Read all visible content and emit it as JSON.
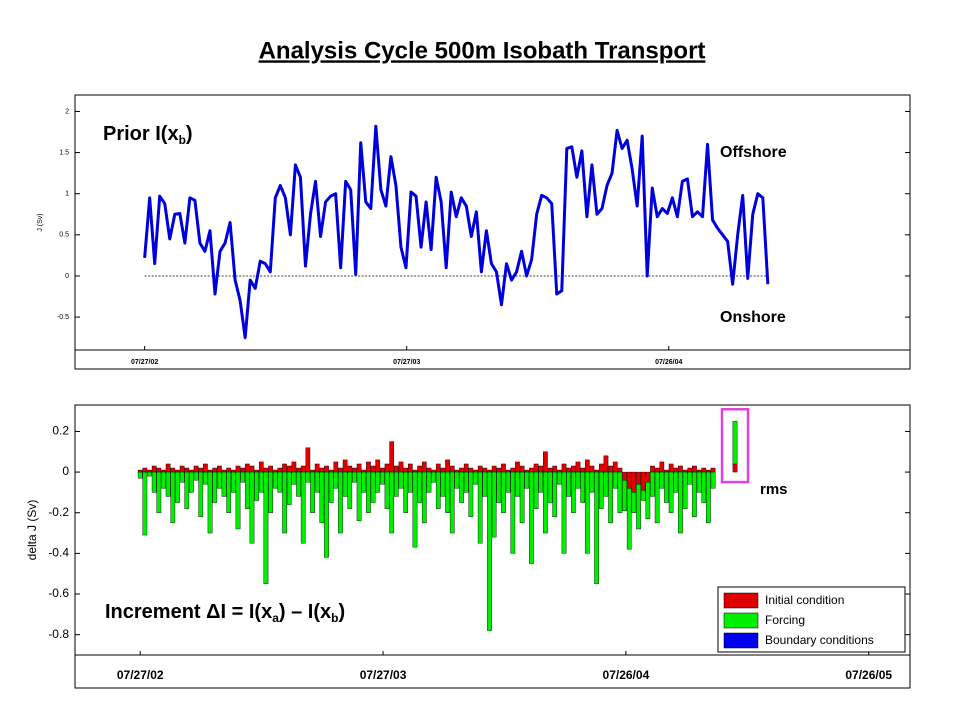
{
  "title": "Analysis Cycle 500m Isobath Transport",
  "chart_data": [
    {
      "type": "line",
      "ylabel": "J (Sv)",
      "annotations": [
        {
          "segments": [
            {
              "text": "Prior I("
            },
            {
              "text": "x"
            },
            {
              "text": "b",
              "sub": true
            },
            {
              "text": ")"
            }
          ]
        },
        {
          "segments": [
            {
              "text": "Offshore"
            }
          ]
        },
        {
          "segments": [
            {
              "text": "Onshore"
            }
          ]
        }
      ],
      "reference_line": 0,
      "x": [
        0,
        7,
        14,
        21,
        28,
        35,
        42,
        49,
        56,
        63,
        70,
        77,
        84,
        91,
        98,
        105,
        112,
        119,
        126,
        133,
        140,
        147,
        154,
        161,
        168,
        175,
        182,
        189,
        196,
        203,
        210,
        217,
        224,
        231,
        238,
        245,
        252,
        259,
        266,
        273,
        280,
        287,
        294,
        301,
        308,
        315,
        322,
        329,
        336,
        343,
        350,
        357,
        364,
        371,
        378,
        385,
        392,
        399,
        406,
        413,
        420,
        427,
        434,
        441,
        448,
        455,
        462,
        469,
        476,
        483,
        490,
        497,
        504,
        511,
        518,
        525,
        532,
        539,
        546,
        553,
        560,
        567,
        574,
        581,
        588,
        595,
        602,
        609,
        616,
        623,
        630,
        637,
        644,
        651,
        658,
        665,
        672,
        679,
        686,
        693,
        700,
        707,
        714,
        721,
        728,
        735,
        742,
        749,
        756,
        763,
        770,
        777,
        784,
        791,
        798,
        805,
        812,
        819,
        826,
        833,
        840,
        847,
        854,
        861,
        868
      ],
      "series": [
        {
          "name": "Prior",
          "color": "#0000dd",
          "values": [
            0.22,
            0.95,
            0.15,
            0.97,
            0.88,
            0.45,
            0.75,
            0.76,
            0.4,
            0.95,
            0.92,
            0.4,
            0.3,
            0.55,
            -0.22,
            0.3,
            0.4,
            0.65,
            -0.05,
            -0.3,
            -0.75,
            -0.05,
            -0.15,
            0.18,
            0.15,
            0.05,
            0.95,
            1.1,
            0.95,
            0.5,
            1.35,
            1.2,
            0.12,
            0.75,
            1.15,
            0.48,
            0.9,
            0.97,
            1.0,
            0.1,
            1.15,
            1.05,
            0.02,
            1.62,
            0.9,
            0.82,
            1.82,
            1.05,
            0.85,
            1.45,
            1.1,
            0.35,
            0.1,
            1.02,
            0.97,
            0.35,
            0.9,
            0.32,
            1.2,
            0.9,
            0.1,
            1.02,
            0.72,
            0.95,
            0.85,
            0.48,
            0.78,
            0.05,
            0.55,
            0.15,
            0.05,
            -0.35,
            0.15,
            -0.05,
            0.05,
            0.3,
            0.0,
            0.2,
            0.75,
            0.98,
            0.95,
            0.88,
            -0.22,
            -0.18,
            1.55,
            1.57,
            1.2,
            1.52,
            0.72,
            1.35,
            0.75,
            0.82,
            1.1,
            1.25,
            1.77,
            1.55,
            1.65,
            1.3,
            0.85,
            1.7,
            0.0,
            1.07,
            0.72,
            0.82,
            0.76,
            0.95,
            0.72,
            1.15,
            1.18,
            0.72,
            0.78,
            0.72,
            1.6,
            0.68,
            0.58,
            0.5,
            0.42,
            -0.1,
            0.5,
            0.98,
            -0.03,
            0.75,
            1.0,
            0.95,
            -0.1
          ]
        }
      ],
      "xlim": [
        -97,
        1066
      ],
      "xticks": [
        {
          "value": 0,
          "label": "07/27/02"
        },
        {
          "value": 365,
          "label": "07/27/03"
        },
        {
          "value": 730,
          "label": "07/26/04"
        }
      ],
      "ylim": [
        -0.9,
        2.2
      ],
      "yticks": [
        -0.5,
        0,
        0.5,
        1,
        1.5,
        2
      ],
      "grid": false
    },
    {
      "type": "stacked_bar",
      "ylabel": "delta J (Sv)",
      "annotations": [
        {
          "segments": [
            {
              "text": "Increment ΔI = I("
            },
            {
              "text": "x"
            },
            {
              "text": "a",
              "sub": true
            },
            {
              "text": ") – I("
            },
            {
              "text": "x"
            },
            {
              "text": "b",
              "sub": true
            },
            {
              "text": ")"
            }
          ]
        },
        {
          "segments": [
            {
              "text": "rms"
            }
          ]
        }
      ],
      "legend": "lower right",
      "x": [
        0,
        7,
        14,
        21,
        28,
        35,
        42,
        49,
        56,
        63,
        70,
        77,
        84,
        91,
        98,
        105,
        112,
        119,
        126,
        133,
        140,
        147,
        154,
        161,
        168,
        175,
        182,
        189,
        196,
        203,
        210,
        217,
        224,
        231,
        238,
        245,
        252,
        259,
        266,
        273,
        280,
        287,
        294,
        301,
        308,
        315,
        322,
        329,
        336,
        343,
        350,
        357,
        364,
        371,
        378,
        385,
        392,
        399,
        406,
        413,
        420,
        427,
        434,
        441,
        448,
        455,
        462,
        469,
        476,
        483,
        490,
        497,
        504,
        511,
        518,
        525,
        532,
        539,
        546,
        553,
        560,
        567,
        574,
        581,
        588,
        595,
        602,
        609,
        616,
        623,
        630,
        637,
        644,
        651,
        658,
        665,
        672,
        679,
        686,
        693,
        700,
        707,
        714,
        721,
        728,
        735,
        742,
        749,
        756,
        763,
        770,
        777,
        784,
        791,
        798,
        805,
        812,
        819,
        826,
        833,
        840,
        847,
        854,
        861
      ],
      "series": [
        {
          "name": "Initial condition",
          "color": "#e00000",
          "values": [
            0.01,
            0.02,
            0.01,
            0.03,
            0.02,
            0.01,
            0.04,
            0.02,
            0.01,
            0.03,
            0.02,
            0.01,
            0.03,
            0.02,
            0.04,
            0.01,
            0.02,
            0.03,
            0.01,
            0.02,
            0.01,
            0.03,
            0.02,
            0.04,
            0.03,
            0.01,
            0.05,
            0.02,
            0.03,
            0.01,
            0.02,
            0.04,
            0.03,
            0.05,
            0.02,
            0.03,
            0.12,
            0.01,
            0.04,
            0.02,
            0.03,
            0.01,
            0.05,
            0.02,
            0.06,
            0.03,
            0.02,
            0.04,
            0.01,
            0.05,
            0.03,
            0.06,
            0.02,
            0.04,
            0.15,
            0.03,
            0.05,
            0.02,
            0.04,
            0.01,
            0.03,
            0.05,
            0.02,
            0.01,
            0.04,
            0.02,
            0.06,
            0.03,
            0.01,
            0.02,
            0.04,
            0.02,
            0.01,
            0.03,
            0.02,
            0.01,
            0.03,
            0.02,
            0.04,
            0.01,
            0.02,
            0.05,
            0.03,
            0.01,
            0.02,
            0.04,
            0.03,
            0.1,
            0.02,
            0.03,
            0.01,
            0.04,
            0.02,
            0.03,
            0.05,
            0.02,
            0.06,
            0.03,
            0.01,
            0.04,
            0.08,
            0.03,
            0.05,
            0.02,
            -0.04,
            -0.08,
            -0.1,
            -0.06,
            -0.09,
            -0.05,
            0.03,
            0.02,
            0.05,
            0.01,
            0.04,
            0.02,
            0.03,
            0.01,
            0.02,
            0.03,
            0.01,
            0.02,
            0.01,
            0.02
          ]
        },
        {
          "name": "Forcing",
          "color": "#00ee00",
          "values": [
            -0.03,
            -0.31,
            -0.02,
            -0.1,
            -0.2,
            -0.08,
            -0.12,
            -0.25,
            -0.15,
            -0.05,
            -0.18,
            -0.1,
            -0.04,
            -0.22,
            -0.06,
            -0.3,
            -0.15,
            -0.08,
            -0.12,
            -0.2,
            -0.1,
            -0.28,
            -0.05,
            -0.18,
            -0.35,
            -0.14,
            -0.1,
            -0.55,
            -0.2,
            -0.08,
            -0.1,
            -0.3,
            -0.16,
            -0.06,
            -0.12,
            -0.35,
            -0.05,
            -0.2,
            -0.1,
            -0.25,
            -0.42,
            -0.15,
            -0.08,
            -0.3,
            -0.12,
            -0.18,
            -0.05,
            -0.24,
            -0.1,
            -0.2,
            -0.15,
            -0.1,
            -0.06,
            -0.18,
            -0.3,
            -0.12,
            -0.08,
            -0.2,
            -0.1,
            -0.37,
            -0.15,
            -0.25,
            -0.1,
            -0.05,
            -0.18,
            -0.12,
            -0.2,
            -0.3,
            -0.08,
            -0.15,
            -0.1,
            -0.22,
            -0.06,
            -0.35,
            -0.12,
            -0.78,
            -0.32,
            -0.15,
            -0.2,
            -0.1,
            -0.4,
            -0.12,
            -0.25,
            -0.08,
            -0.45,
            -0.18,
            -0.1,
            -0.3,
            -0.15,
            -0.22,
            -0.06,
            -0.4,
            -0.12,
            -0.2,
            -0.08,
            -0.15,
            -0.4,
            -0.1,
            -0.55,
            -0.18,
            -0.12,
            -0.25,
            -0.08,
            -0.2,
            -0.15,
            -0.3,
            -0.1,
            -0.22,
            -0.05,
            -0.18,
            -0.12,
            -0.25,
            -0.08,
            -0.15,
            -0.2,
            -0.1,
            -0.3,
            -0.18,
            -0.06,
            -0.22,
            -0.1,
            -0.15,
            -0.25,
            -0.08
          ]
        },
        {
          "name": "Boundary conditions",
          "color": "#0000ee",
          "values": [
            0,
            0,
            0,
            0,
            0,
            0,
            0,
            0,
            0,
            0,
            0,
            0,
            0,
            0,
            0,
            0,
            0,
            0,
            0,
            0,
            0,
            0,
            0,
            0,
            0,
            0,
            0,
            0,
            0,
            0,
            0,
            0,
            0,
            0,
            0,
            0,
            0,
            0,
            0,
            0,
            0,
            0,
            0,
            0,
            0,
            0,
            0,
            0,
            0,
            0,
            0,
            0,
            0,
            0,
            0,
            0,
            0,
            0,
            0,
            0,
            0,
            0,
            0,
            0,
            0,
            0,
            0,
            0,
            0,
            0,
            0,
            0,
            0,
            0,
            0,
            0,
            0,
            0,
            0,
            0,
            0,
            0,
            0,
            0,
            0,
            0,
            0,
            0,
            0,
            0,
            0,
            0,
            0,
            0,
            0,
            0,
            0,
            0,
            0,
            0,
            0,
            0,
            0,
            0,
            0,
            0,
            0,
            0,
            0,
            0,
            0,
            0,
            0,
            0,
            0,
            0,
            0,
            0,
            0,
            0,
            0,
            0,
            0,
            0
          ]
        }
      ],
      "rms": {
        "x": 894,
        "values": [
          0.04,
          0.21,
          0
        ],
        "highlight_color": "#e040e0"
      },
      "xlim": [
        -98,
        1157
      ],
      "xticks": [
        {
          "value": 0,
          "label": "07/27/02"
        },
        {
          "value": 365,
          "label": "07/27/03"
        },
        {
          "value": 730,
          "label": "07/26/04"
        },
        {
          "value": 1095,
          "label": "07/26/05"
        }
      ],
      "ylim": [
        -0.9,
        0.33
      ],
      "yticks": [
        0.2,
        0,
        -0.2,
        -0.4,
        -0.6,
        -0.8
      ],
      "grid": false
    }
  ]
}
